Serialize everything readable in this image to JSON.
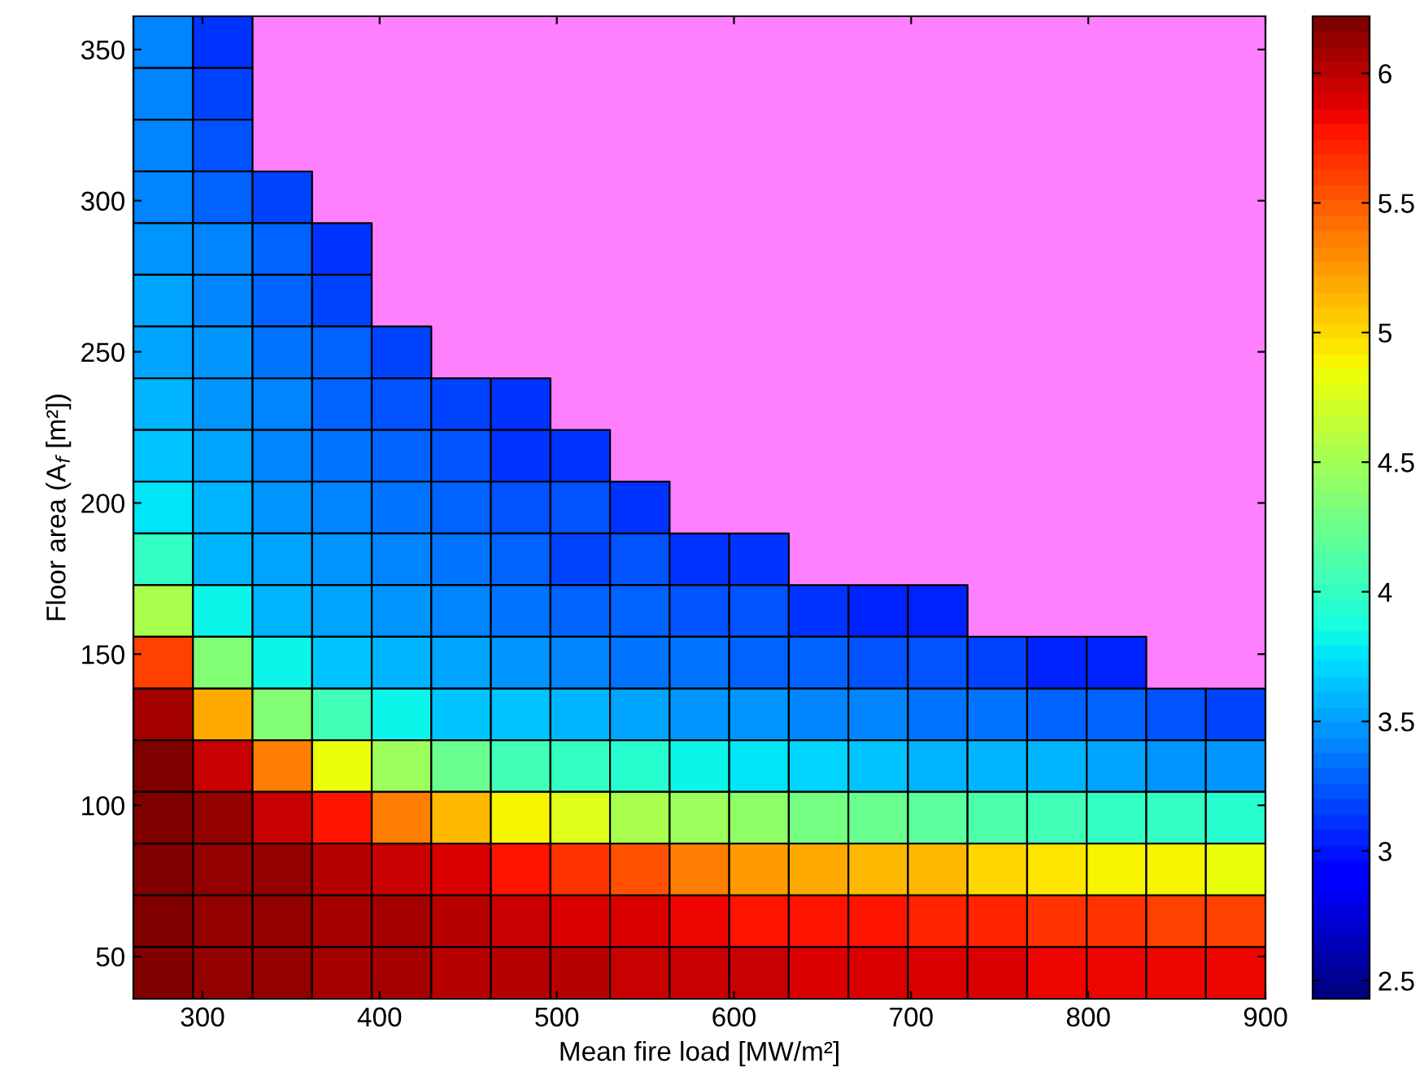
{
  "chart_data": {
    "type": "heatmap",
    "xlabel": "Mean fire load [MW/m²]",
    "ylabel": "Floor area (A$_{f}$ [m²])",
    "xlim": [
      261,
      900
    ],
    "xticks": [
      300,
      400,
      500,
      600,
      700,
      800,
      900
    ],
    "ylim": [
      36,
      361
    ],
    "yticks": [
      50,
      100,
      150,
      200,
      250,
      300,
      350
    ],
    "clim": [
      2.43,
      6.22
    ],
    "cticks": [
      2.5,
      3,
      3.5,
      4,
      4.5,
      5,
      5.5,
      6
    ],
    "color": "#ff80ff",
    "cells": [
      [
        3.38,
        3.14,
        null,
        null,
        null,
        null,
        null,
        null,
        null,
        null,
        null,
        null,
        null,
        null,
        null,
        null,
        null,
        null,
        null
      ],
      [
        3.4,
        3.16,
        null,
        null,
        null,
        null,
        null,
        null,
        null,
        null,
        null,
        null,
        null,
        null,
        null,
        null,
        null,
        null,
        null
      ],
      [
        3.4,
        3.24,
        null,
        null,
        null,
        null,
        null,
        null,
        null,
        null,
        null,
        null,
        null,
        null,
        null,
        null,
        null,
        null,
        null
      ],
      [
        3.42,
        3.3,
        3.16,
        null,
        null,
        null,
        null,
        null,
        null,
        null,
        null,
        null,
        null,
        null,
        null,
        null,
        null,
        null,
        null
      ],
      [
        3.44,
        3.38,
        3.27,
        3.1,
        null,
        null,
        null,
        null,
        null,
        null,
        null,
        null,
        null,
        null,
        null,
        null,
        null,
        null,
        null
      ],
      [
        3.5,
        3.4,
        3.27,
        3.16,
        null,
        null,
        null,
        null,
        null,
        null,
        null,
        null,
        null,
        null,
        null,
        null,
        null,
        null,
        null
      ],
      [
        3.53,
        3.44,
        3.33,
        3.27,
        3.16,
        null,
        null,
        null,
        null,
        null,
        null,
        null,
        null,
        null,
        null,
        null,
        null,
        null,
        null
      ],
      [
        3.56,
        3.44,
        3.38,
        3.27,
        3.2,
        3.16,
        3.1,
        null,
        null,
        null,
        null,
        null,
        null,
        null,
        null,
        null,
        null,
        null,
        null
      ],
      [
        3.67,
        3.5,
        3.4,
        3.35,
        3.3,
        3.24,
        3.14,
        3.13,
        null,
        null,
        null,
        null,
        null,
        null,
        null,
        null,
        null,
        null,
        null
      ],
      [
        3.75,
        3.56,
        3.46,
        3.4,
        3.35,
        3.3,
        3.24,
        3.2,
        3.13,
        null,
        null,
        null,
        null,
        null,
        null,
        null,
        null,
        null,
        null
      ],
      [
        4.0,
        3.61,
        3.5,
        3.44,
        3.38,
        3.33,
        3.27,
        3.16,
        3.2,
        3.1,
        3.1,
        null,
        null,
        null,
        null,
        null,
        null,
        null,
        null
      ],
      [
        4.56,
        3.8,
        3.61,
        3.5,
        3.44,
        3.38,
        3.33,
        3.3,
        3.27,
        3.2,
        3.24,
        3.1,
        3.07,
        3.08,
        null,
        null,
        null,
        null,
        null
      ],
      [
        5.57,
        4.33,
        3.85,
        3.67,
        3.58,
        3.5,
        3.44,
        3.4,
        3.35,
        3.33,
        3.27,
        3.26,
        3.24,
        3.2,
        3.16,
        3.08,
        3.08,
        null,
        null
      ],
      [
        6.1,
        5.21,
        4.38,
        4.04,
        3.85,
        3.67,
        3.62,
        3.56,
        3.5,
        3.47,
        3.44,
        3.4,
        3.38,
        3.35,
        3.33,
        3.3,
        3.27,
        3.2,
        3.16
      ],
      [
        6.22,
        5.98,
        5.39,
        4.8,
        4.45,
        4.21,
        4.04,
        3.98,
        3.92,
        3.82,
        3.76,
        3.72,
        3.67,
        3.61,
        3.58,
        3.56,
        3.5,
        3.47,
        3.44
      ],
      [
        6.22,
        6.16,
        5.98,
        5.75,
        5.39,
        5.15,
        4.86,
        4.75,
        4.56,
        4.45,
        4.4,
        4.27,
        4.21,
        4.16,
        4.1,
        4.04,
        3.98,
        4.02,
        3.92
      ],
      [
        6.22,
        6.16,
        6.16,
        6.04,
        5.98,
        5.92,
        5.75,
        5.63,
        5.51,
        5.39,
        5.27,
        5.21,
        5.15,
        5.1,
        4.98,
        4.96,
        4.9,
        4.86,
        4.8
      ],
      [
        6.22,
        6.16,
        6.16,
        6.1,
        6.1,
        6.04,
        5.98,
        5.92,
        5.9,
        5.86,
        5.8,
        5.8,
        5.75,
        5.74,
        5.69,
        5.68,
        5.63,
        5.62,
        5.57
      ],
      [
        6.22,
        6.16,
        6.16,
        6.1,
        6.1,
        6.04,
        6.04,
        6.03,
        5.98,
        5.98,
        5.98,
        5.92,
        5.92,
        5.91,
        5.9,
        5.86,
        5.86,
        5.86,
        5.86
      ]
    ]
  }
}
